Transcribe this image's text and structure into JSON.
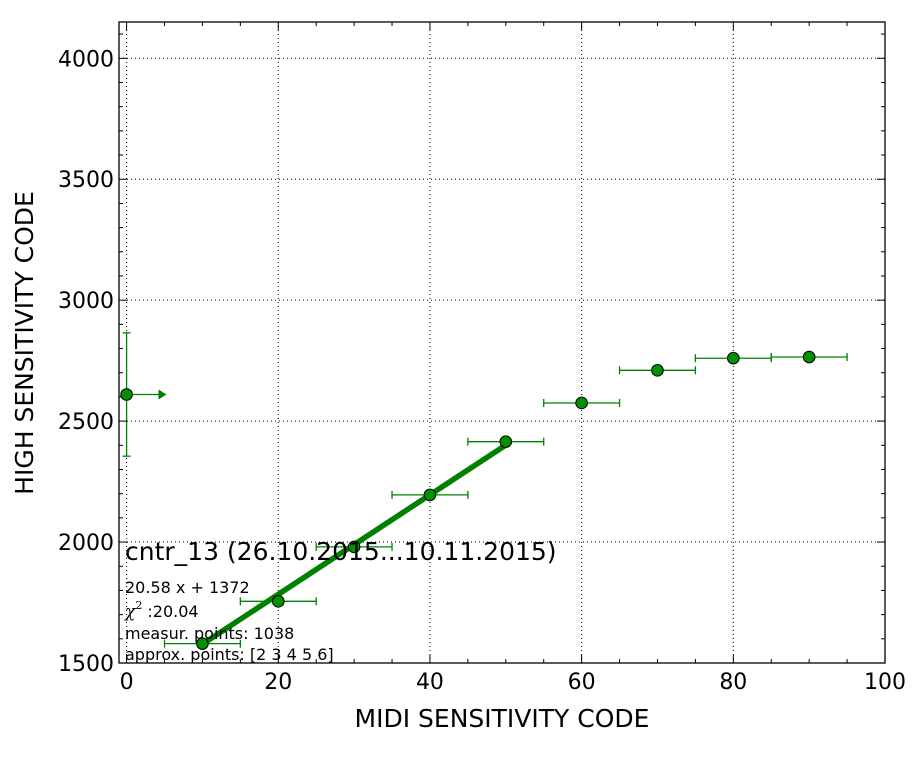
{
  "chart_data": {
    "type": "scatter",
    "xlabel": "MIDI SENSITIVITY CODE",
    "ylabel": "HIGH SENSITIVITY CODE",
    "xlim": [
      -1,
      100
    ],
    "ylim": [
      1500,
      4150
    ],
    "xticks": [
      0,
      20,
      40,
      60,
      80,
      100
    ],
    "xtick_labels": [
      "0",
      "20",
      "40",
      "60",
      "80",
      "100"
    ],
    "yticks": [
      1500,
      2000,
      2500,
      3000,
      3500,
      4000
    ],
    "ytick_labels": [
      "1500",
      "2000",
      "2500",
      "3000",
      "3500",
      "4000"
    ],
    "grid": true,
    "color": "#008000",
    "marker_fill": "#009000",
    "points": [
      {
        "x": 0,
        "y": 2610,
        "xerr_plus": 5,
        "xerr_minus": 0,
        "yerr": 255,
        "arrow": true
      },
      {
        "x": 10,
        "y": 1580,
        "xerr": 5,
        "yerr": 0
      },
      {
        "x": 20,
        "y": 1755,
        "xerr": 5,
        "yerr": 0
      },
      {
        "x": 30,
        "y": 1980,
        "xerr": 5,
        "yerr": 0
      },
      {
        "x": 40,
        "y": 2195,
        "xerr": 5,
        "yerr": 0
      },
      {
        "x": 50,
        "y": 2415,
        "xerr": 5,
        "yerr": 0
      },
      {
        "x": 60,
        "y": 2575,
        "xerr": 5,
        "yerr": 0
      },
      {
        "x": 70,
        "y": 2710,
        "xerr": 5,
        "yerr": 0
      },
      {
        "x": 80,
        "y": 2760,
        "xerr": 5,
        "yerr": 0
      },
      {
        "x": 90,
        "y": 2765,
        "xerr": 5,
        "yerr": 0
      }
    ],
    "fit_line": {
      "x": [
        10,
        50
      ],
      "y": [
        1578,
        2401
      ]
    },
    "annotations": {
      "title": "cntr_13 (26.10.2015...10.11.2015)",
      "equation": "20.58 x + 1372",
      "chi_symbol": "χ",
      "chi_sup": "2",
      "chi_value": " :20.04",
      "measur_points": "measur. points: 1038",
      "approx_points": "approx. points: [2 3 4 5 6]"
    }
  }
}
